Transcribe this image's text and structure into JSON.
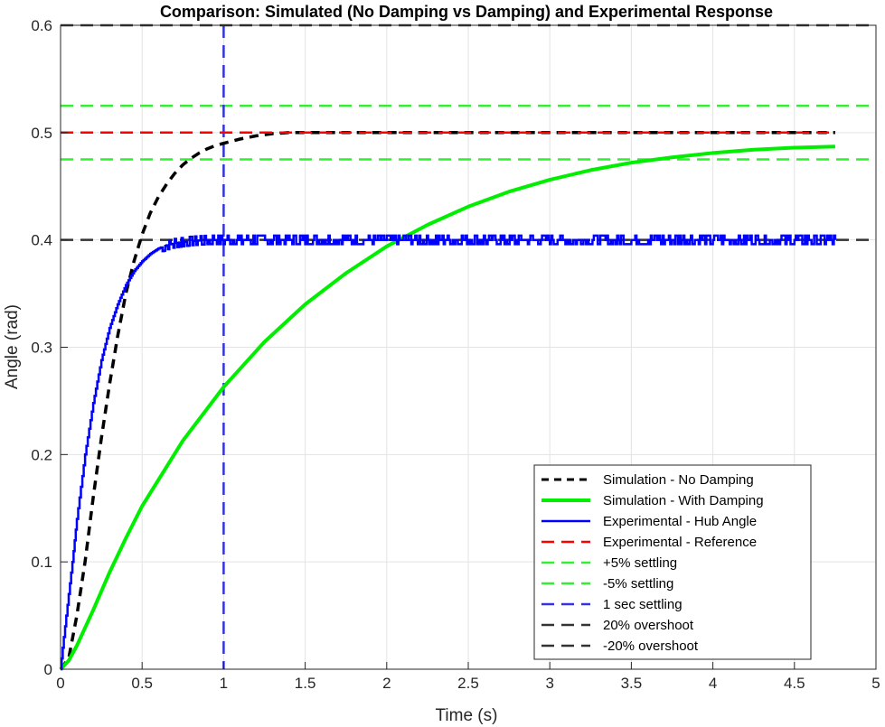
{
  "chart_data": {
    "type": "line",
    "title": "Comparison: Simulated (No Damping vs Damping) and Experimental Response",
    "xlabel": "Time (s)",
    "ylabel": "Angle (rad)",
    "xlim": [
      0,
      5
    ],
    "ylim": [
      0,
      0.6
    ],
    "xticks": [
      "0",
      "0.5",
      "1",
      "1.5",
      "2",
      "2.5",
      "3",
      "3.5",
      "4",
      "4.5",
      "5"
    ],
    "yticks": [
      "0",
      "0.1",
      "0.2",
      "0.3",
      "0.4",
      "0.5",
      "0.6"
    ],
    "grid": true,
    "legend_position": "bottom-right",
    "series": [
      {
        "name": "Simulation - No Damping",
        "color": "#000000",
        "style": "dashed-thick",
        "x": [
          0,
          0.05,
          0.1,
          0.15,
          0.2,
          0.25,
          0.3,
          0.35,
          0.4,
          0.45,
          0.5,
          0.55,
          0.6,
          0.65,
          0.7,
          0.75,
          0.8,
          0.85,
          0.9,
          0.95,
          1.0,
          1.1,
          1.2,
          1.3,
          1.4,
          1.5,
          1.75,
          2.0,
          2.5,
          3.0,
          3.5,
          4.0,
          4.5,
          4.75
        ],
        "y": [
          0,
          0.01,
          0.05,
          0.1,
          0.16,
          0.215,
          0.265,
          0.31,
          0.35,
          0.38,
          0.405,
          0.425,
          0.44,
          0.452,
          0.462,
          0.47,
          0.476,
          0.481,
          0.485,
          0.488,
          0.49,
          0.494,
          0.497,
          0.499,
          0.5,
          0.5,
          0.5,
          0.5,
          0.5,
          0.5,
          0.5,
          0.5,
          0.5,
          0.5
        ]
      },
      {
        "name": "Simulation - With Damping",
        "color": "#00ee00",
        "style": "solid-thick",
        "x": [
          0,
          0.05,
          0.1,
          0.2,
          0.3,
          0.4,
          0.5,
          0.75,
          1.0,
          1.25,
          1.5,
          1.75,
          2.0,
          2.25,
          2.5,
          2.75,
          3.0,
          3.25,
          3.5,
          3.75,
          4.0,
          4.25,
          4.5,
          4.75
        ],
        "y": [
          0,
          0.008,
          0.022,
          0.055,
          0.09,
          0.122,
          0.152,
          0.213,
          0.263,
          0.305,
          0.34,
          0.369,
          0.394,
          0.414,
          0.431,
          0.445,
          0.456,
          0.465,
          0.472,
          0.477,
          0.481,
          0.484,
          0.486,
          0.487
        ]
      },
      {
        "name": "Experimental - Hub Angle",
        "color": "#0000ff",
        "style": "solid",
        "x": [
          0,
          0.02,
          0.05,
          0.08,
          0.1,
          0.15,
          0.2,
          0.25,
          0.3,
          0.35,
          0.4,
          0.45,
          0.5,
          0.55,
          0.6,
          0.65,
          0.7,
          0.75,
          0.8,
          0.9,
          1.0,
          1.5,
          2.0,
          2.5,
          3.0,
          3.5,
          4.0,
          4.5,
          4.75
        ],
        "y": [
          0,
          0.03,
          0.07,
          0.11,
          0.14,
          0.2,
          0.248,
          0.288,
          0.318,
          0.34,
          0.358,
          0.371,
          0.38,
          0.387,
          0.392,
          0.395,
          0.397,
          0.398,
          0.399,
          0.4,
          0.4,
          0.4,
          0.4,
          0.4,
          0.4,
          0.4,
          0.4,
          0.4,
          0.4
        ],
        "noise_amplitude": 0.004
      },
      {
        "name": "Experimental - Reference",
        "color": "#ff0000",
        "style": "dashed",
        "x": [
          0,
          4.75
        ],
        "y": [
          0.5,
          0.5
        ]
      }
    ],
    "reference_lines": [
      {
        "name": "+5% settling",
        "orientation": "horizontal",
        "value": 0.525,
        "color": "#33ee33",
        "style": "dashed"
      },
      {
        "name": "-5% settling",
        "orientation": "horizontal",
        "value": 0.475,
        "color": "#33ee33",
        "style": "dashed"
      },
      {
        "name": "1 sec settling",
        "orientation": "vertical",
        "value": 1,
        "color": "#3333dd",
        "style": "dashed"
      },
      {
        "name": "20% overshoot",
        "orientation": "horizontal",
        "value": 0.6,
        "color": "#333333",
        "style": "dashed"
      },
      {
        "name": "-20% overshoot",
        "orientation": "horizontal",
        "value": 0.4,
        "color": "#333333",
        "style": "dashed"
      }
    ],
    "legend": [
      {
        "label": "Simulation - No Damping",
        "color": "#000000",
        "dash": "8,6",
        "width": 3
      },
      {
        "label": "Simulation - With Damping",
        "color": "#00ee00",
        "dash": "",
        "width": 4
      },
      {
        "label": "Experimental - Hub Angle",
        "color": "#0000ff",
        "dash": "",
        "width": 2.5
      },
      {
        "label": "Experimental - Reference",
        "color": "#ff0000",
        "dash": "14,8",
        "width": 2.5
      },
      {
        "label": "+5% settling",
        "color": "#33ee33",
        "dash": "14,8",
        "width": 2.5
      },
      {
        "label": "-5% settling",
        "color": "#33ee33",
        "dash": "14,8",
        "width": 2.5
      },
      {
        "label": "1 sec settling",
        "color": "#3333dd",
        "dash": "14,8",
        "width": 2.5
      },
      {
        "label": "20% overshoot",
        "color": "#333333",
        "dash": "14,8",
        "width": 2.5
      },
      {
        "label": "-20% overshoot",
        "color": "#333333",
        "dash": "14,8",
        "width": 2.5
      }
    ]
  }
}
